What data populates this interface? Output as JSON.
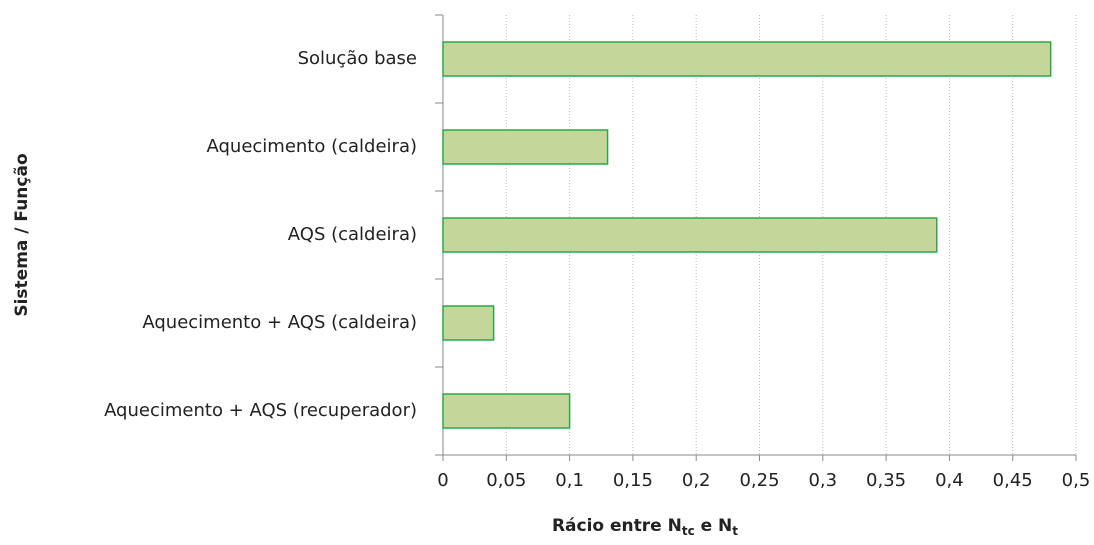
{
  "chart_data": {
    "type": "bar",
    "orientation": "horizontal",
    "categories": [
      "Solução base",
      "Aquecimento (caldeira)",
      "AQS (caldeira)",
      "Aquecimento + AQS (caldeira)",
      "Aquecimento + AQS (recuperador)"
    ],
    "values": [
      0.48,
      0.13,
      0.39,
      0.04,
      0.1
    ],
    "color": "#c4d79b",
    "edge_color": "#2aa84a",
    "x_label": [
      "Rácio entre N",
      "tc",
      " e N",
      "t"
    ],
    "y_label": "Sistema / Função",
    "xlim": [
      0,
      0.5
    ],
    "xticks": [
      0,
      {
        "value": 0.05,
        "label": "0,05"
      },
      {
        "value": 0.1,
        "label": "0,1"
      },
      {
        "value": 0.15,
        "label": "0,15"
      },
      {
        "value": 0.2,
        "label": "0,2"
      },
      {
        "value": 0.25,
        "label": "0,25"
      },
      {
        "value": 0.3,
        "label": "0,3"
      },
      {
        "value": 0.35,
        "label": "0,35"
      },
      {
        "value": 0.4,
        "label": "0,4"
      },
      {
        "value": 0.45,
        "label": "0,45"
      },
      {
        "value": 0.5,
        "label": "0,5"
      }
    ],
    "grid": true
  }
}
